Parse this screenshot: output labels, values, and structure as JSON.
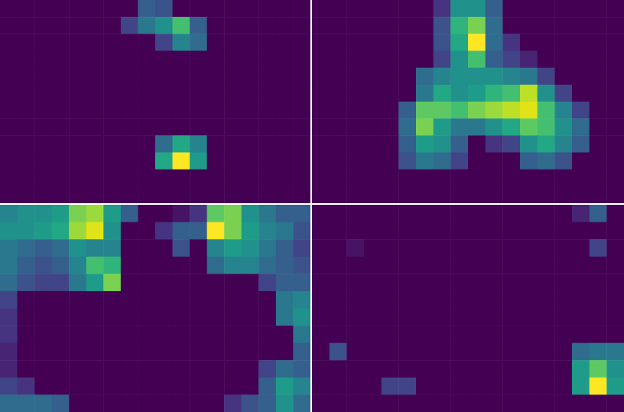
{
  "chart_data": [
    {
      "type": "heatmap",
      "tick_labels": false,
      "cells": [
        [
          0,
          0,
          0,
          0,
          0,
          0,
          0,
          0,
          0.3,
          0.25,
          0,
          0,
          0,
          0,
          0,
          0,
          0,
          0
        ],
        [
          0,
          0,
          0,
          0,
          0,
          0,
          0,
          0.2,
          0.4,
          0.5,
          0.7,
          0.3,
          0,
          0,
          0,
          0,
          0,
          0
        ],
        [
          0,
          0,
          0,
          0,
          0,
          0,
          0,
          0,
          0,
          0.2,
          0.45,
          0.35,
          0,
          0,
          0,
          0,
          0,
          0
        ],
        [
          0,
          0,
          0,
          0,
          0,
          0,
          0,
          0,
          0,
          0,
          0,
          0,
          0,
          0,
          0,
          0,
          0,
          0
        ],
        [
          0,
          0,
          0,
          0,
          0,
          0,
          0,
          0,
          0,
          0,
          0,
          0,
          0,
          0,
          0,
          0,
          0,
          0
        ],
        [
          0,
          0,
          0,
          0,
          0,
          0,
          0,
          0,
          0,
          0,
          0,
          0,
          0,
          0,
          0,
          0,
          0,
          0
        ],
        [
          0,
          0,
          0,
          0,
          0,
          0,
          0,
          0,
          0,
          0,
          0,
          0,
          0,
          0,
          0,
          0,
          0,
          0
        ],
        [
          0,
          0,
          0,
          0,
          0,
          0,
          0,
          0,
          0,
          0,
          0,
          0,
          0,
          0,
          0,
          0,
          0,
          0
        ],
        [
          0,
          0,
          0,
          0,
          0,
          0,
          0,
          0,
          0,
          0.35,
          0.6,
          0.45,
          0,
          0,
          0,
          0,
          0,
          0
        ],
        [
          0,
          0,
          0,
          0,
          0,
          0,
          0,
          0,
          0,
          0.6,
          1,
          0.55,
          0,
          0,
          0,
          0,
          0,
          0
        ],
        [
          0,
          0,
          0,
          0,
          0,
          0,
          0,
          0,
          0,
          0,
          0,
          0,
          0,
          0,
          0,
          0,
          0,
          0
        ],
        [
          0,
          0,
          0,
          0,
          0,
          0,
          0,
          0,
          0,
          0,
          0,
          0,
          0,
          0,
          0,
          0,
          0,
          0
        ]
      ]
    },
    {
      "type": "heatmap",
      "tick_labels": false,
      "cells": [
        [
          0,
          0,
          0,
          0,
          0,
          0,
          0,
          0.15,
          0.5,
          0.5,
          0.3,
          0,
          0,
          0,
          0,
          0,
          0,
          0
        ],
        [
          0,
          0,
          0,
          0,
          0,
          0,
          0,
          0.25,
          0.65,
          0.8,
          0.35,
          0,
          0,
          0,
          0,
          0,
          0,
          0
        ],
        [
          0,
          0,
          0,
          0,
          0,
          0,
          0,
          0.25,
          0.6,
          1,
          0.35,
          0.15,
          0,
          0,
          0,
          0,
          0,
          0
        ],
        [
          0,
          0,
          0,
          0,
          0,
          0,
          0,
          0.2,
          0.5,
          0.7,
          0.3,
          0.2,
          0.1,
          0,
          0,
          0,
          0,
          0
        ],
        [
          0,
          0,
          0,
          0,
          0,
          0,
          0.35,
          0.45,
          0.5,
          0.5,
          0.5,
          0.45,
          0.4,
          0.2,
          0,
          0,
          0,
          0
        ],
        [
          0,
          0,
          0,
          0,
          0,
          0,
          0.4,
          0.6,
          0.5,
          0.55,
          0.65,
          0.7,
          0.9,
          0.5,
          0.2,
          0,
          0,
          0
        ],
        [
          0,
          0,
          0,
          0,
          0,
          0.3,
          0.75,
          0.75,
          0.7,
          0.8,
          0.85,
          0.9,
          0.95,
          0.7,
          0.45,
          0.2,
          0,
          0
        ],
        [
          0,
          0,
          0,
          0,
          0,
          0.35,
          0.8,
          0.55,
          0.4,
          0.4,
          0.5,
          0.6,
          0.75,
          0.7,
          0.5,
          0.35,
          0,
          0
        ],
        [
          0,
          0,
          0,
          0,
          0,
          0.3,
          0.55,
          0.5,
          0.3,
          0,
          0.15,
          0.2,
          0.5,
          0.6,
          0.45,
          0.3,
          0,
          0
        ],
        [
          0,
          0,
          0,
          0,
          0,
          0.25,
          0.4,
          0.35,
          0.2,
          0,
          0,
          0,
          0.3,
          0.35,
          0.25,
          0,
          0,
          0
        ],
        [
          0,
          0,
          0,
          0,
          0,
          0,
          0,
          0,
          0,
          0,
          0,
          0,
          0,
          0,
          0,
          0,
          0,
          0
        ],
        [
          0,
          0,
          0,
          0,
          0,
          0,
          0,
          0,
          0,
          0,
          0,
          0,
          0,
          0,
          0,
          0,
          0,
          0
        ]
      ]
    },
    {
      "type": "heatmap",
      "tick_labels": false,
      "cells": [
        [
          0.45,
          0.5,
          0.5,
          0.55,
          0.8,
          0.85,
          0.55,
          0.3,
          0,
          0,
          0.05,
          0.15,
          0.75,
          0.8,
          0.5,
          0.4,
          0.3,
          0.3
        ],
        [
          0.5,
          0.5,
          0.55,
          0.6,
          0.85,
          0.95,
          0.5,
          0,
          0,
          0.15,
          0.3,
          0.3,
          1,
          0.8,
          0.55,
          0.45,
          0.4,
          0.25
        ],
        [
          0.4,
          0.35,
          0.3,
          0.35,
          0.5,
          0.45,
          0.45,
          0,
          0,
          0,
          0.25,
          0,
          0.45,
          0.55,
          0.5,
          0.4,
          0.3,
          0.2
        ],
        [
          0.4,
          0.3,
          0.25,
          0.3,
          0.45,
          0.7,
          0.65,
          0,
          0,
          0,
          0,
          0,
          0.35,
          0.45,
          0.45,
          0.35,
          0.3,
          0.25
        ],
        [
          0.35,
          0.25,
          0.2,
          0.2,
          0.4,
          0.55,
          0.8,
          0,
          0,
          0,
          0,
          0,
          0,
          0,
          0,
          0.2,
          0.3,
          0.3
        ],
        [
          0.2,
          0,
          0,
          0,
          0,
          0,
          0,
          0,
          0,
          0,
          0,
          0,
          0,
          0,
          0,
          0,
          0.4,
          0.45
        ],
        [
          0.15,
          0,
          0,
          0,
          0,
          0,
          0,
          0,
          0,
          0,
          0,
          0,
          0,
          0,
          0,
          0,
          0.4,
          0.5
        ],
        [
          0.15,
          0,
          0,
          0,
          0,
          0,
          0,
          0,
          0,
          0,
          0,
          0,
          0,
          0,
          0,
          0,
          0,
          0.4
        ],
        [
          0.1,
          0,
          0,
          0,
          0,
          0,
          0,
          0,
          0,
          0,
          0,
          0,
          0,
          0,
          0,
          0,
          0,
          0.3
        ],
        [
          0.1,
          0,
          0,
          0,
          0,
          0,
          0,
          0,
          0,
          0,
          0,
          0,
          0,
          0,
          0,
          0.2,
          0.35,
          0.3
        ],
        [
          0.2,
          0.15,
          0,
          0,
          0,
          0,
          0,
          0,
          0,
          0,
          0,
          0,
          0,
          0,
          0,
          0.3,
          0.55,
          0.45
        ],
        [
          0.35,
          0.35,
          0.35,
          0.3,
          0,
          0,
          0,
          0,
          0,
          0,
          0,
          0,
          0,
          0.15,
          0.25,
          0.3,
          0.5,
          0.35
        ]
      ]
    },
    {
      "type": "heatmap",
      "tick_labels": false,
      "cells": [
        [
          0,
          0,
          0,
          0,
          0,
          0,
          0,
          0,
          0,
          0,
          0,
          0,
          0,
          0,
          0,
          0.1,
          0.3,
          0
        ],
        [
          0,
          0,
          0,
          0,
          0,
          0,
          0,
          0,
          0,
          0,
          0,
          0,
          0,
          0,
          0,
          0,
          0,
          0
        ],
        [
          0,
          0,
          0.05,
          0,
          0,
          0,
          0,
          0,
          0,
          0,
          0,
          0,
          0,
          0,
          0,
          0,
          0.2,
          0
        ],
        [
          0,
          0,
          0,
          0,
          0,
          0,
          0,
          0,
          0,
          0,
          0,
          0,
          0,
          0,
          0,
          0,
          0,
          0
        ],
        [
          0,
          0,
          0,
          0,
          0,
          0,
          0,
          0,
          0,
          0,
          0,
          0,
          0,
          0,
          0,
          0,
          0,
          0
        ],
        [
          0,
          0,
          0,
          0,
          0,
          0,
          0,
          0,
          0,
          0,
          0,
          0,
          0,
          0,
          0,
          0,
          0,
          0
        ],
        [
          0,
          0,
          0,
          0,
          0,
          0,
          0,
          0,
          0,
          0,
          0,
          0,
          0,
          0,
          0,
          0,
          0,
          0
        ],
        [
          0,
          0,
          0,
          0,
          0,
          0,
          0,
          0,
          0,
          0,
          0,
          0,
          0,
          0,
          0,
          0,
          0,
          0
        ],
        [
          0,
          0.25,
          0,
          0,
          0,
          0,
          0,
          0,
          0,
          0,
          0,
          0,
          0,
          0,
          0,
          0.35,
          0.4,
          0.4
        ],
        [
          0,
          0,
          0,
          0,
          0,
          0,
          0,
          0,
          0,
          0,
          0,
          0,
          0,
          0,
          0,
          0.55,
          0.75,
          0.5
        ],
        [
          0,
          0,
          0,
          0,
          0.2,
          0.2,
          0,
          0,
          0,
          0,
          0,
          0,
          0,
          0,
          0,
          0.55,
          1,
          0.55
        ],
        [
          0,
          0,
          0,
          0,
          0,
          0,
          0,
          0,
          0,
          0,
          0,
          0,
          0,
          0,
          0,
          0,
          0,
          0
        ]
      ]
    }
  ]
}
